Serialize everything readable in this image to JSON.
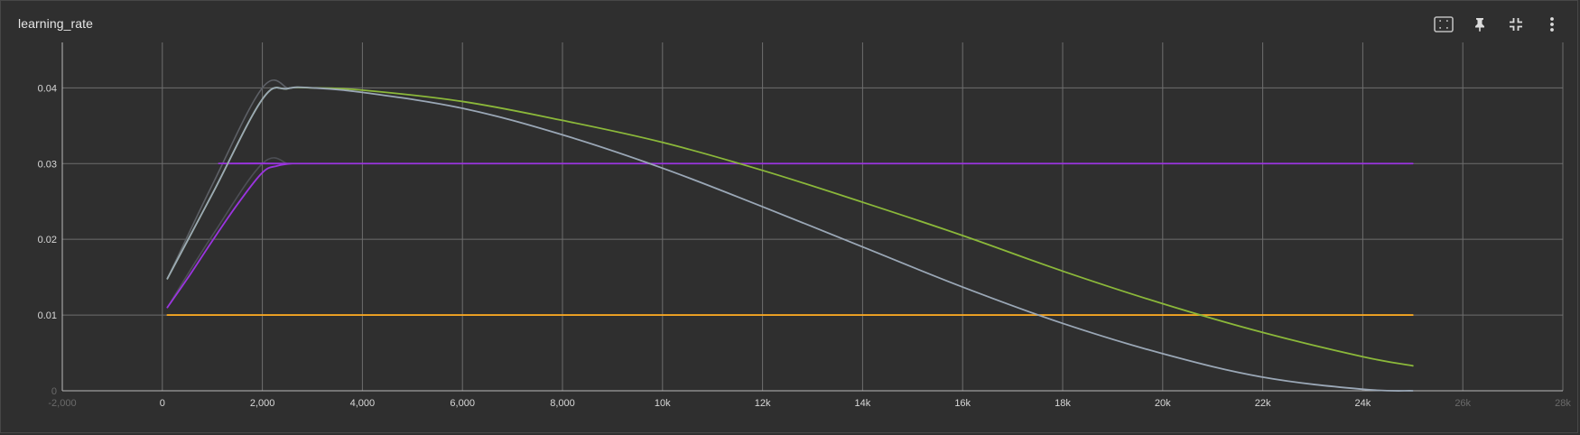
{
  "card": {
    "title": "learning_rate"
  },
  "toolbar": {
    "buttons": [
      {
        "name": "fit-domain-icon"
      },
      {
        "name": "pin-icon"
      },
      {
        "name": "collapse-icon"
      },
      {
        "name": "more-vert-icon"
      }
    ]
  },
  "chart_data": {
    "type": "line",
    "title": "learning_rate",
    "xlabel": "",
    "ylabel": "",
    "xlim": [
      -2000,
      28000
    ],
    "ylim": [
      0,
      0.046
    ],
    "grid": true,
    "x_ticks": [
      {
        "value": -2000,
        "label": "-2,000",
        "faint": true
      },
      {
        "value": 0,
        "label": "0"
      },
      {
        "value": 2000,
        "label": "2,000"
      },
      {
        "value": 4000,
        "label": "4,000"
      },
      {
        "value": 6000,
        "label": "6,000"
      },
      {
        "value": 8000,
        "label": "8,000"
      },
      {
        "value": 10000,
        "label": "10k"
      },
      {
        "value": 12000,
        "label": "12k"
      },
      {
        "value": 14000,
        "label": "14k"
      },
      {
        "value": 16000,
        "label": "16k"
      },
      {
        "value": 18000,
        "label": "18k"
      },
      {
        "value": 20000,
        "label": "20k"
      },
      {
        "value": 22000,
        "label": "22k"
      },
      {
        "value": 24000,
        "label": "24k"
      },
      {
        "value": 26000,
        "label": "26k",
        "faint": true
      },
      {
        "value": 28000,
        "label": "28k",
        "faint": true
      }
    ],
    "y_ticks": [
      {
        "value": 0,
        "label": "0",
        "faint": true
      },
      {
        "value": 0.01,
        "label": "0.01"
      },
      {
        "value": 0.02,
        "label": "0.02"
      },
      {
        "value": 0.03,
        "label": "0.03"
      },
      {
        "value": 0.04,
        "label": "0.04"
      }
    ],
    "series": [
      {
        "color": "#f5a623",
        "x": [
          100,
          25000
        ],
        "values": [
          0.01,
          0.01
        ]
      },
      {
        "color": "#9b34e0",
        "x": [
          100,
          500,
          1000,
          1500,
          2000,
          2300,
          2600,
          3000,
          25000
        ],
        "values": [
          0.011,
          0.0148,
          0.0198,
          0.0246,
          0.0288,
          0.0297,
          0.03,
          0.03,
          0.03
        ]
      },
      {
        "color": "#8bb83a",
        "x": [
          100,
          1000,
          2000,
          2500,
          3000,
          4000,
          6000,
          8000,
          10000,
          12000,
          14000,
          16000,
          18000,
          20000,
          22000,
          24000,
          25000
        ],
        "values": [
          0.0148,
          0.026,
          0.0385,
          0.0399,
          0.04,
          0.0397,
          0.0382,
          0.0357,
          0.0328,
          0.0291,
          0.0249,
          0.0205,
          0.0158,
          0.0115,
          0.0077,
          0.0045,
          0.0033
        ]
      },
      {
        "color": "#9aa7b6",
        "x": [
          100,
          1000,
          2000,
          2500,
          3000,
          4000,
          6000,
          8000,
          10000,
          12000,
          14000,
          16000,
          18000,
          20000,
          22000,
          24000,
          25000
        ],
        "values": [
          0.0148,
          0.026,
          0.0385,
          0.0399,
          0.04,
          0.0394,
          0.0373,
          0.0338,
          0.0294,
          0.0243,
          0.019,
          0.0137,
          0.0089,
          0.0049,
          0.0018,
          0.0002,
          0.0
        ]
      }
    ],
    "ghost_series": [
      {
        "color": "#5d6066",
        "x": [
          100,
          1000,
          2000,
          2500
        ],
        "values": [
          0.0148,
          0.0272,
          0.04,
          0.04
        ]
      },
      {
        "color": "#4d4f55",
        "x": [
          100,
          1000,
          2000,
          2500
        ],
        "values": [
          0.011,
          0.0205,
          0.03,
          0.03
        ]
      }
    ]
  }
}
